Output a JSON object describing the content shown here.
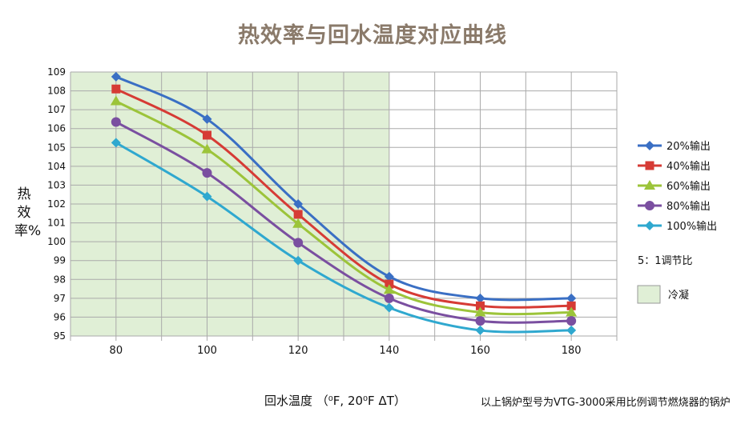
{
  "chart_data": {
    "type": "line",
    "title": "热效率与回水温度对应曲线",
    "ylabel": "热效率%",
    "xlabel": "回水温度 （⁰F, 20⁰F ΔT）",
    "x": [
      80,
      100,
      120,
      140,
      160,
      180
    ],
    "xticks": [
      "80",
      "100",
      "120",
      "140",
      "160",
      "180"
    ],
    "xlim": [
      70,
      190
    ],
    "ylim": [
      95,
      109
    ],
    "yticks": [
      "95",
      "96",
      "97",
      "98",
      "99",
      "100",
      "101",
      "102",
      "103",
      "104",
      "105",
      "106",
      "107",
      "108",
      "109"
    ],
    "grid": true,
    "legend_position": "right",
    "series": [
      {
        "name": "20%输出",
        "marker": "diamond",
        "color": "#3a6fc4",
        "values": [
          108.75,
          106.5,
          102.0,
          98.15,
          97.0,
          97.0
        ]
      },
      {
        "name": "40%输出",
        "marker": "square",
        "color": "#d63b35",
        "values": [
          108.1,
          105.65,
          101.45,
          97.75,
          96.6,
          96.6
        ]
      },
      {
        "name": "60%输出",
        "marker": "triangle",
        "color": "#9cc43a",
        "values": [
          107.45,
          104.9,
          100.95,
          97.45,
          96.25,
          96.25
        ]
      },
      {
        "name": "80%输出",
        "marker": "circle",
        "color": "#7a4fa0",
        "values": [
          106.35,
          103.65,
          99.95,
          97.0,
          95.8,
          95.8
        ]
      },
      {
        "name": "100%输出",
        "marker": "diamond",
        "color": "#2fa8cf",
        "values": [
          105.25,
          102.4,
          99.0,
          96.5,
          95.3,
          95.3
        ]
      }
    ],
    "shaded_region": {
      "label": "冷凝",
      "x_range": [
        70,
        140
      ],
      "color": "#e0efd6"
    },
    "annotations": [
      "5：1调节比"
    ],
    "footnote": "以上锅炉型号为VTG-3000采用比例调节燃烧器的锅炉"
  }
}
